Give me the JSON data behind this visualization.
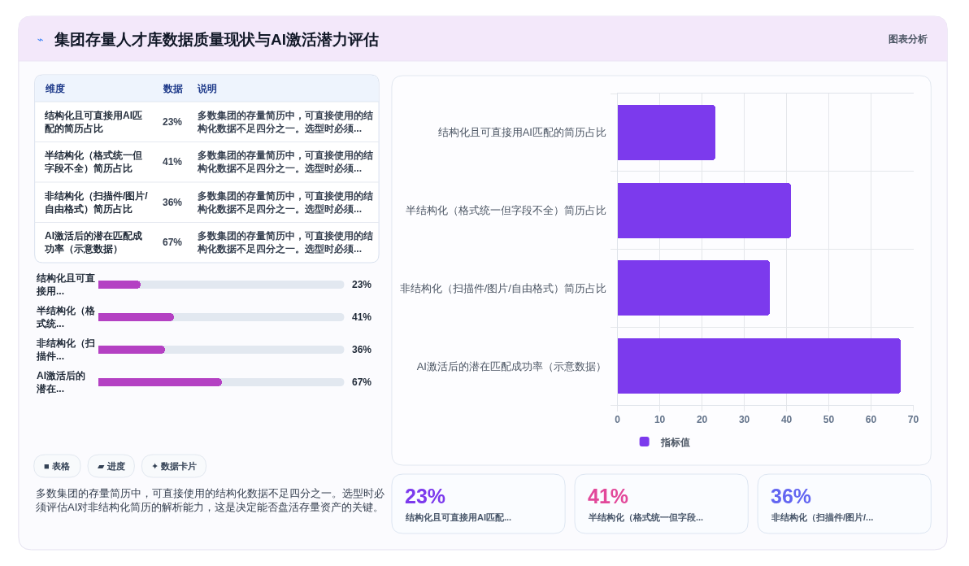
{
  "chart_data": [
    {
      "type": "other",
      "title": "集团存量人才库数据质量现状与AI激活潜力评估",
      "annotations": [
        "⌁",
        "图表分析"
      ]
    },
    {
      "type": "other",
      "categories": [
        "结构化且可直接用AI匹配的简历占比",
        "半结构化（格式统一但字段不全）简历占比",
        "非结构化（扫描件/图片/自由格式）简历占比",
        "AI激活后的潜在匹配成功率（示意数据）"
      ],
      "value_labels": [
        "23%",
        "41%",
        "36%",
        "67%"
      ],
      "annotations": [
        "维度",
        "数据",
        "说明",
        "多数集团的存量简历中，可直接使用的结构化数据不足四分之一。选型时必须...",
        "多数集团的存量简历中，可直接使用的结构化数据不足四分之一。选型时必须...",
        "多数集团的存量简历中，可直接使用的结构化数据不足四分之一。选型时必须...",
        "多数集团的存量简历中，可直接使用的结构化数据不足四分之一。选型时必须..."
      ]
    },
    {
      "type": "bar",
      "orientation": "horizontal",
      "categories": [
        "结构化且可直接用...",
        "半结构化（格式统...",
        "非结构化（扫描件...",
        "AI激活后的潜在..."
      ],
      "values": [
        23,
        41,
        36,
        67
      ],
      "value_labels": [
        "23%",
        "41%",
        "36%",
        "67%"
      ],
      "color": "#b441c3",
      "xlim": [
        0,
        133
      ],
      "tick_labels": "y"
    },
    {
      "type": "other",
      "annotations": [
        "■ 表格",
        "▰ 进度",
        "✦ 数据卡片",
        "多数集团的存量简历中，可直接使用的结构化数据不足四分之一。选型时必须评估AI对非结构化简历的解析能力，这是决定能否盘活存量资产的关键。"
      ]
    },
    {
      "type": "bar",
      "orientation": "horizontal",
      "categories": [
        "结构化且可直接用AI匹配的简历占比",
        "半结构化（格式统一但字段不全）简历占比",
        "非结构化（扫描件/图片/自由格式）简历占比",
        "AI激活后的潜在匹配成功率（示意数据）"
      ],
      "series": [
        {
          "name": "指标值",
          "color": "#7c3aed",
          "values": [
            23,
            41,
            36,
            67
          ]
        }
      ],
      "xlim": [
        0,
        70
      ],
      "xticks": [
        0,
        10,
        20,
        30,
        40,
        50,
        60,
        70
      ],
      "grid": true,
      "legend": "bottom"
    },
    {
      "type": "other",
      "categories": [
        "结构化且可直接用AI匹配...",
        "半结构化（格式统一但字段...",
        "非结构化（扫描件/图片/..."
      ],
      "value_labels": [
        "23%",
        "41%",
        "36%"
      ]
    }
  ]
}
